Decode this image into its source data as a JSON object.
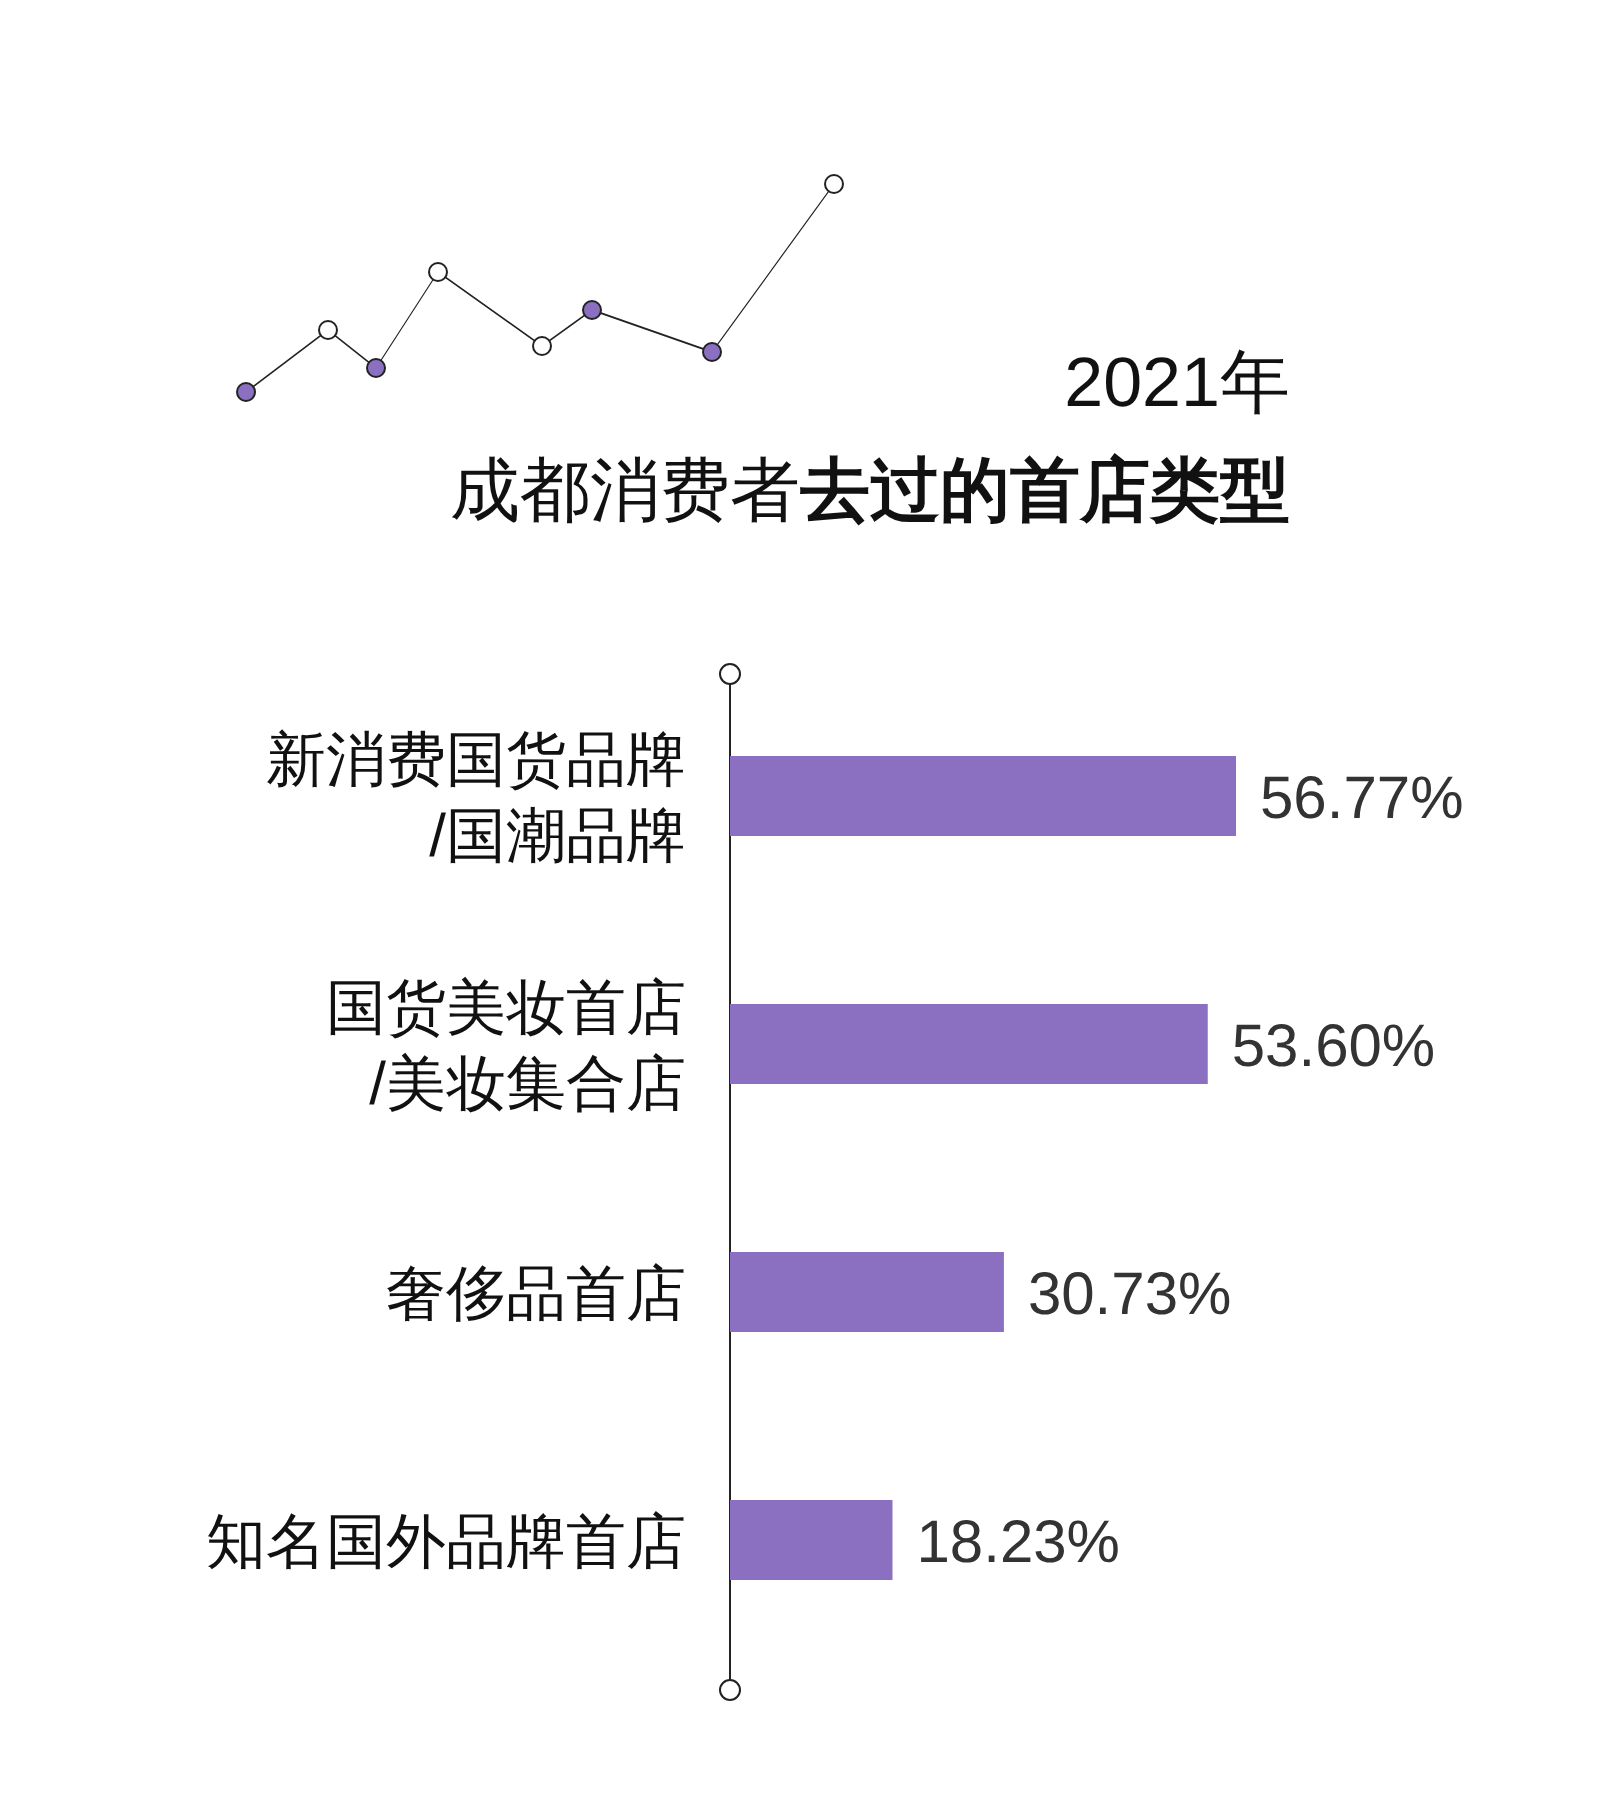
{
  "chart_data": {
    "type": "bar",
    "orientation": "horizontal",
    "title": "2021年",
    "subtitle": "成都消费者**去过的首店类型**",
    "categories": [
      "新消费国货品牌/国潮品牌",
      "国货美妆首店/美妆集合店",
      "奢侈品首店",
      "知名国外品牌首店"
    ],
    "values": [
      56.77,
      53.6,
      30.73,
      18.23
    ],
    "value_labels": [
      "56.77%",
      "53.60%",
      "30.73%",
      "18.23%"
    ],
    "color": "#8b6fc1"
  }
}
